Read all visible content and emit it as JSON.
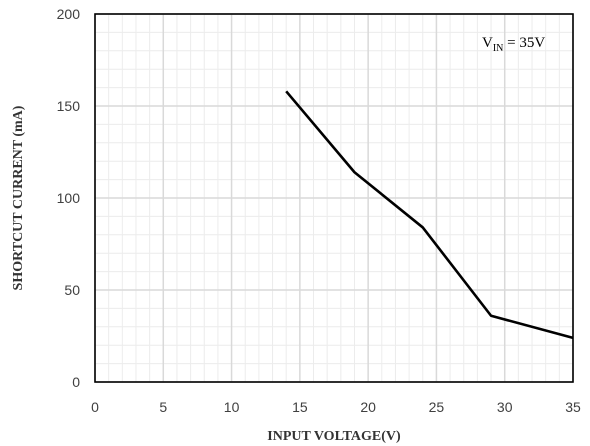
{
  "chart_data": {
    "type": "line",
    "title": "",
    "xlabel": "INPUT VOLTAGE(V)",
    "ylabel": "SHORTCUT CURRENT (mA)",
    "xlim": [
      0,
      35
    ],
    "ylim": [
      0,
      200
    ],
    "xticks": [
      0,
      5,
      10,
      15,
      20,
      25,
      30,
      35
    ],
    "yticks": [
      0,
      50,
      100,
      150,
      200
    ],
    "x_minor_step": 1,
    "y_minor_step": 10,
    "grid": true,
    "annotation": {
      "main": "V",
      "subscript": "IN",
      "suffix": " = 35V",
      "placement": "top-right"
    },
    "series": [
      {
        "color": "#000000",
        "x": [
          14,
          19,
          24,
          29,
          35
        ],
        "y": [
          158,
          114,
          84,
          36,
          24
        ]
      }
    ]
  },
  "colors": {
    "major_grid": "#d9d9d9",
    "minor_grid": "#ececec",
    "axis": "#000000",
    "line": "#000000"
  }
}
